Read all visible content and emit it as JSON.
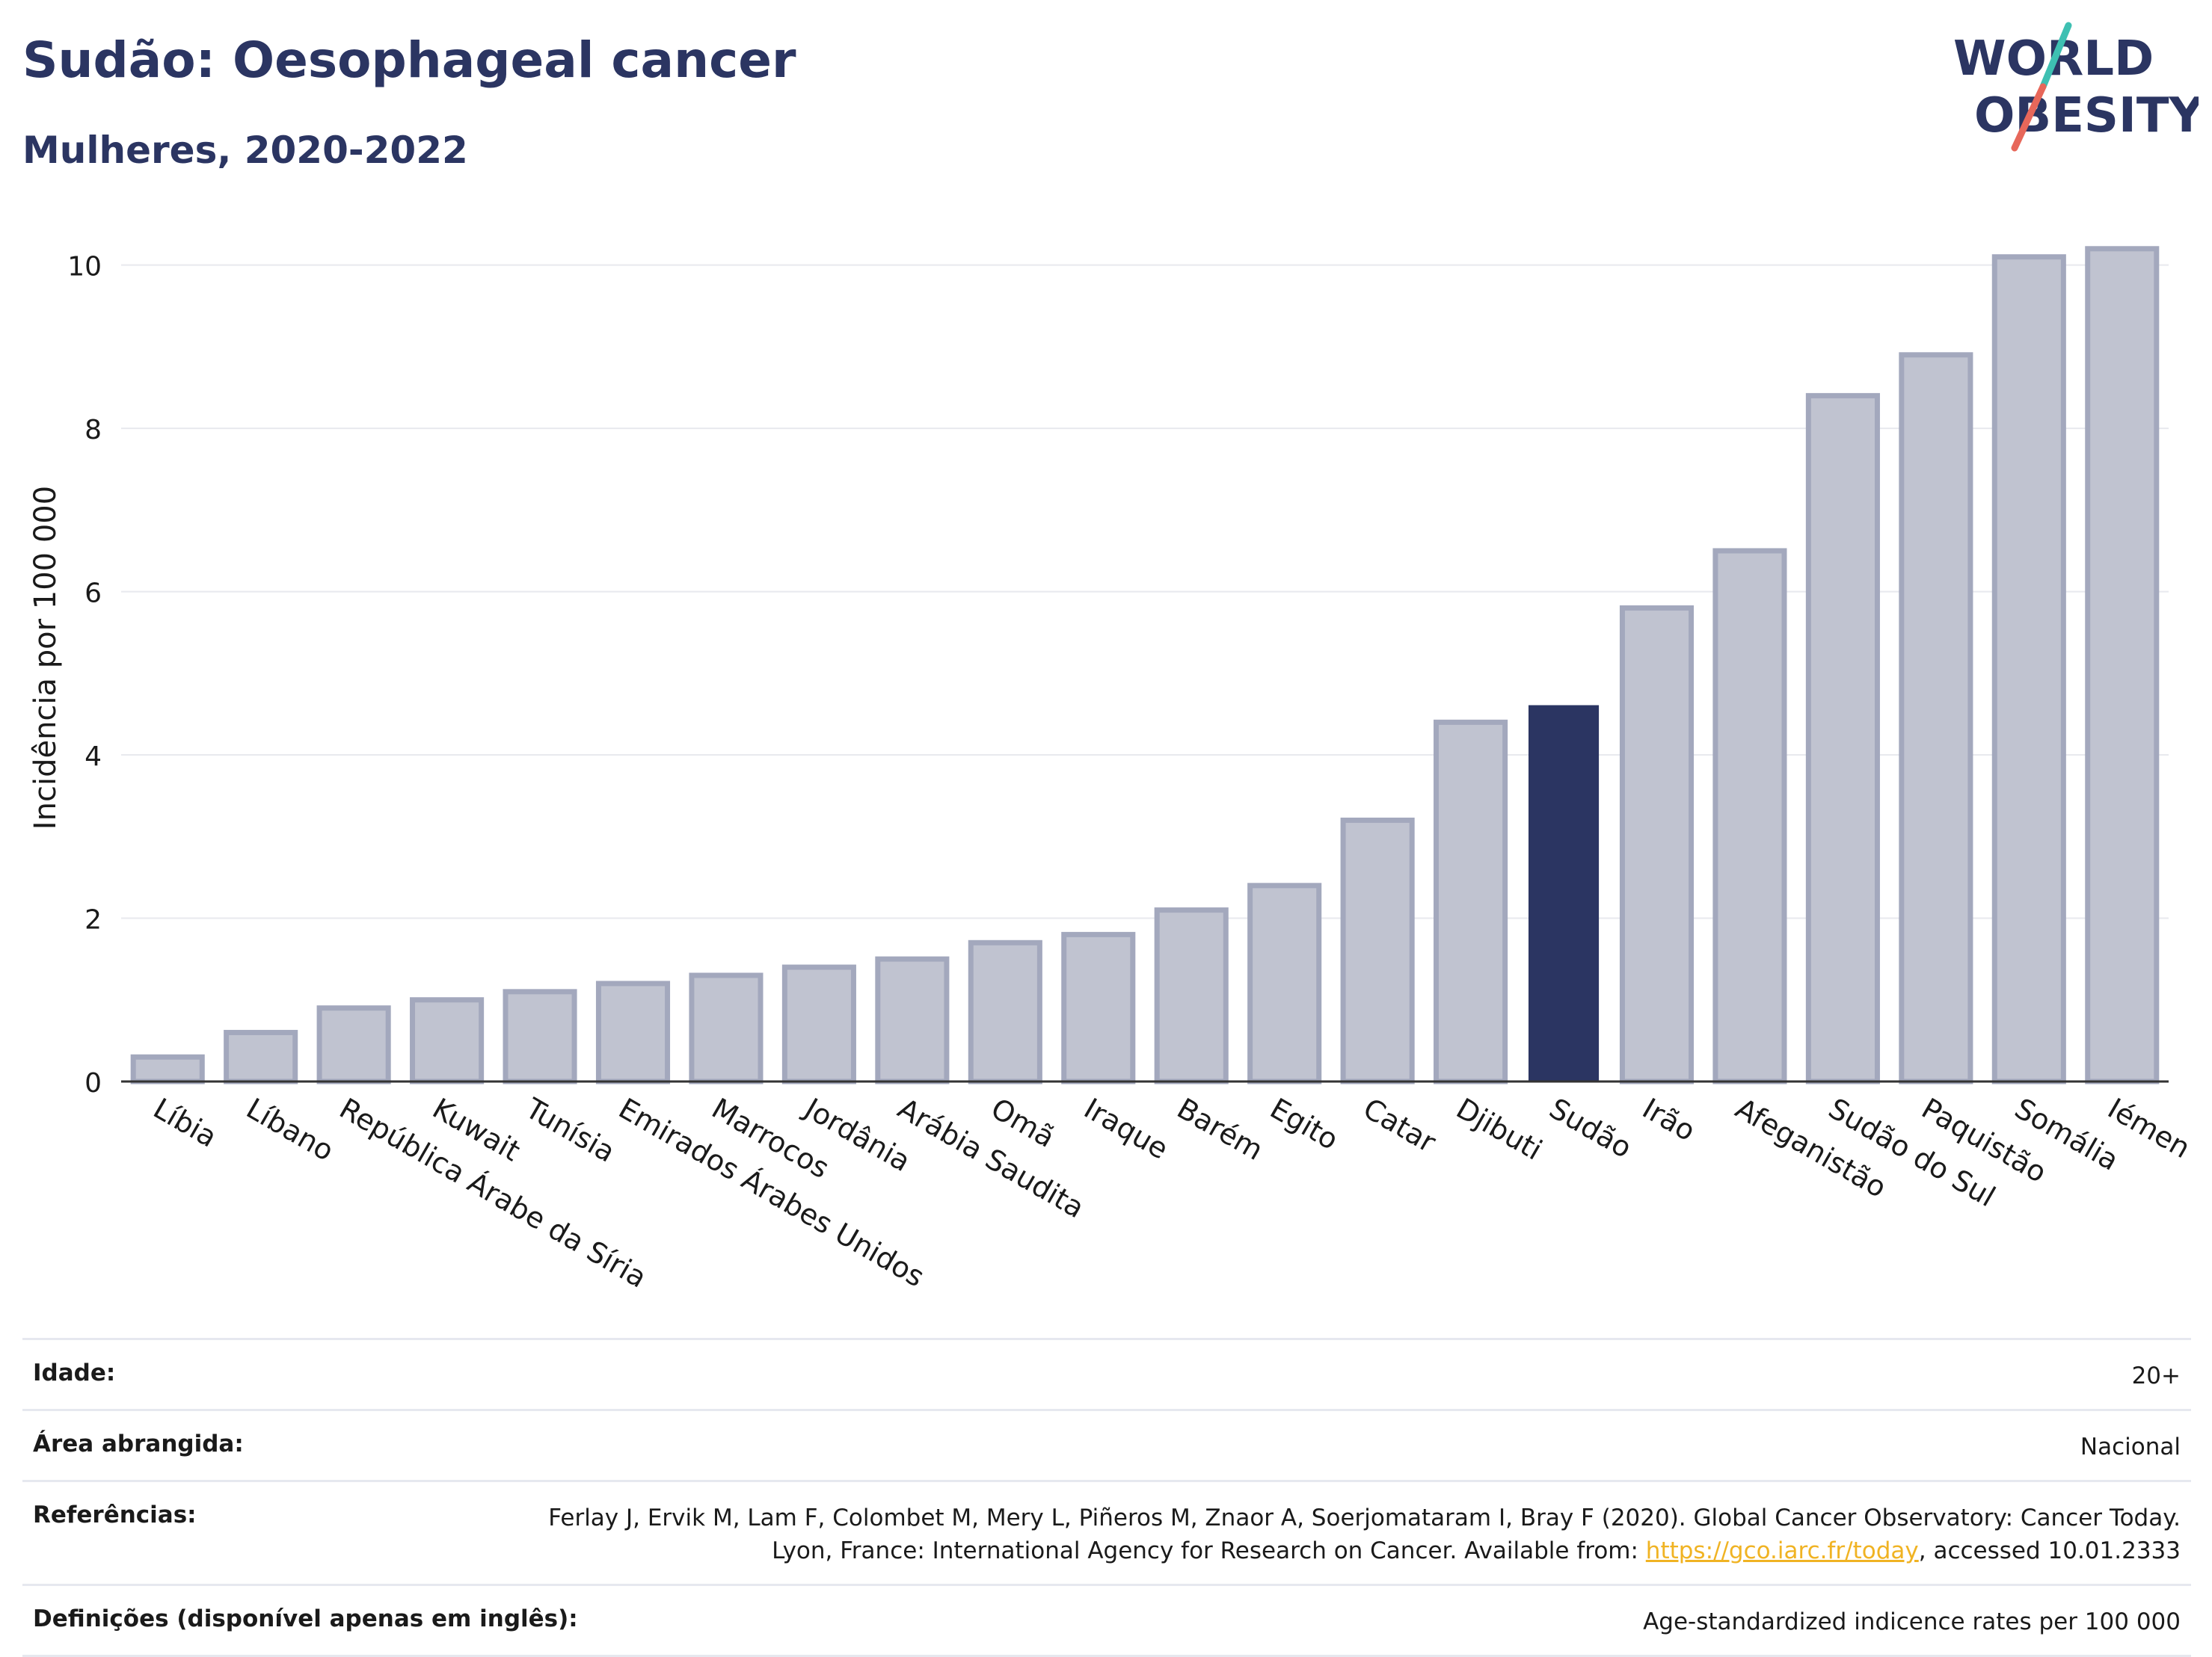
{
  "header": {
    "title": "Sudão: Oesophageal cancer",
    "subtitle": "Mulheres, 2020-2022"
  },
  "logo": {
    "line1": "WORLD",
    "line2": "OBESITY",
    "slash_colors": [
      "#e7675a",
      "#3ec0b2"
    ],
    "text_color": "#2b3562"
  },
  "chart_data": {
    "type": "bar",
    "ylabel": "Incidência por 100 000",
    "ylim": [
      0,
      10.5
    ],
    "yticks": [
      0,
      2,
      4,
      6,
      8,
      10
    ],
    "grid": true,
    "categories": [
      "Líbia",
      "Líbano",
      "República Árabe da Síria",
      "Kuwait",
      "Tunísia",
      "Emirados Árabes Unidos",
      "Marrocos",
      "Jordânia",
      "Arábia Saudita",
      "Omã",
      "Iraque",
      "Barém",
      "Egito",
      "Catar",
      "Djibuti",
      "Sudão",
      "Irão",
      "Afeganistão",
      "Sudão do Sul",
      "Paquistão",
      "Somália",
      "Iémen"
    ],
    "values": [
      0.3,
      0.6,
      0.9,
      1.0,
      1.1,
      1.2,
      1.3,
      1.4,
      1.5,
      1.7,
      1.8,
      2.1,
      2.4,
      3.2,
      4.4,
      4.6,
      5.8,
      6.5,
      8.4,
      8.9,
      10.1,
      10.2
    ],
    "highlight": "Sudão",
    "colors": {
      "bar": "#c0c3d0",
      "bar_border": "#a3a8bd",
      "highlight": "#2b3562",
      "grid": "#e8e9ee"
    }
  },
  "footer": {
    "rows": [
      {
        "key": "Idade:",
        "value": "20+"
      },
      {
        "key": "Área abrangida:",
        "value": "Nacional"
      },
      {
        "key": "Referências:",
        "value_pre": "Ferlay J, Ervik M, Lam F, Colombet M, Mery L, Piñeros M, Znaor A, Soerjomataram I, Bray F (2020). Global Cancer Observatory: Cancer Today. Lyon, France: International Agency for Research on Cancer. Available from: ",
        "link": "https://gco.iarc.fr/today",
        "value_post": ", accessed 10.01.2333"
      },
      {
        "key": "Definições (disponível apenas em inglês):",
        "value": "Age-standardized indicence rates per 100 000"
      }
    ]
  }
}
